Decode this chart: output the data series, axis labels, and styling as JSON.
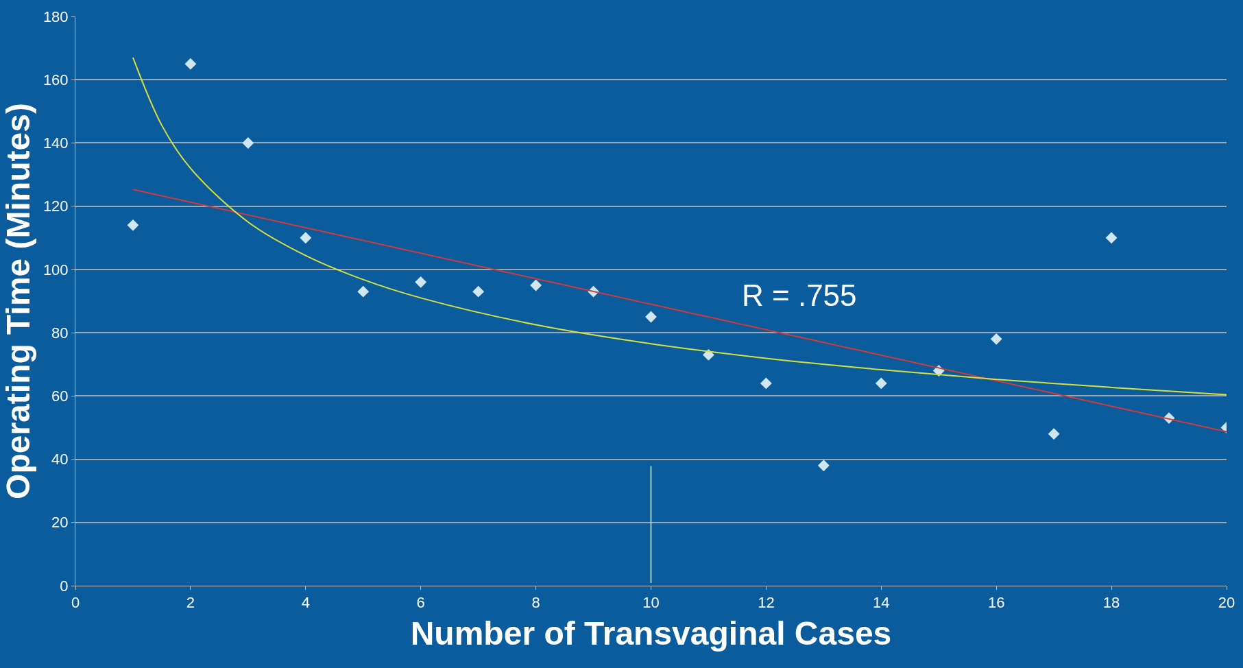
{
  "chart_data": {
    "type": "scatter",
    "xlabel": "Number of Transvaginal Cases",
    "ylabel": "Operating Time (Minutes)",
    "xlim": [
      0,
      20
    ],
    "xticks": [
      0,
      2,
      4,
      6,
      8,
      10,
      12,
      14,
      16,
      18,
      20
    ],
    "ylim": [
      0,
      180
    ],
    "yticks": [
      0,
      20,
      40,
      60,
      80,
      100,
      120,
      140,
      160,
      180
    ],
    "grid": "y",
    "series": [
      {
        "marker": "diamond",
        "color": "#cfe6f0",
        "x": [
          1,
          2,
          3,
          4,
          5,
          6,
          7,
          8,
          9,
          10,
          11,
          12,
          13,
          14,
          15,
          16,
          17,
          18,
          19,
          20
        ],
        "values": [
          114,
          165,
          140,
          110,
          93,
          96,
          93,
          95,
          93,
          85,
          73,
          64,
          38,
          64,
          68,
          78,
          48,
          110,
          53,
          50
        ]
      },
      {
        "type": "line",
        "marker": "none",
        "color": "#d03a3a",
        "x": [
          1,
          20
        ],
        "values": [
          125.3,
          48.7
        ]
      },
      {
        "type": "line",
        "marker": "none",
        "color": "#d8e040",
        "x": [
          1,
          1.5,
          2,
          3,
          4,
          5,
          6,
          8,
          10,
          12,
          14,
          16,
          18,
          20
        ],
        "values": [
          167,
          145.6,
          132,
          115,
          104.4,
          96.8,
          91,
          82.5,
          76.5,
          71.9,
          68.3,
          65.2,
          62.7,
          60.4
        ]
      }
    ],
    "ref_lines": [
      {
        "axis": "x",
        "value": 10,
        "color": "#ffffff"
      }
    ],
    "annotations": [
      "R = .755"
    ]
  }
}
